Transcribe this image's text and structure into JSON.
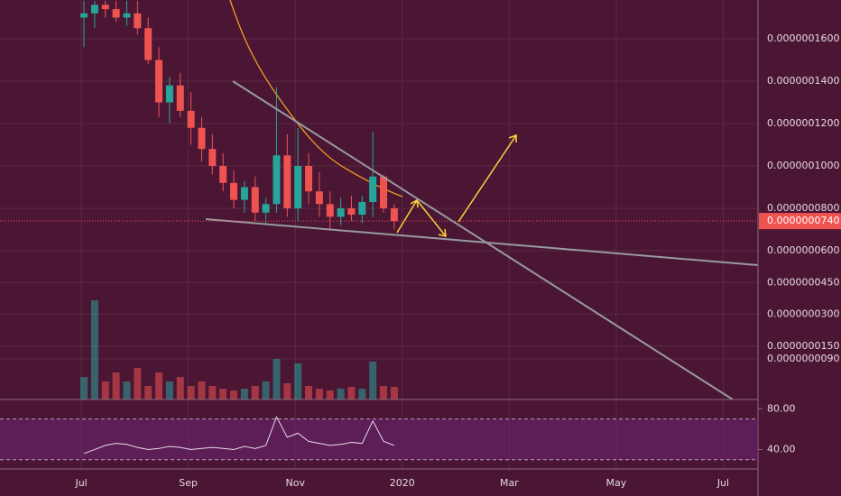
{
  "chart_data": {
    "type": "candlestick",
    "background": "#4a1633",
    "grid_color": "#5c2a45",
    "up_color": "#26a69a",
    "down_color": "#ef5350",
    "xlim": [
      -1.52,
      12.65
    ],
    "xticks": [
      {
        "value": 0,
        "label": "Jul"
      },
      {
        "value": 2,
        "label": "Sep"
      },
      {
        "value": 4,
        "label": "Nov"
      },
      {
        "value": 6,
        "label": "2020"
      },
      {
        "value": 8,
        "label": "Mar"
      },
      {
        "value": 10,
        "label": "May"
      },
      {
        "value": 12,
        "label": "Jul"
      }
    ],
    "ylim": [
      -1.02e-08,
      1.783e-07
    ],
    "yticks": [
      {
        "value": 1.6e-07,
        "label": "0.0000001600"
      },
      {
        "value": 1.4e-07,
        "label": "0.0000001400"
      },
      {
        "value": 1.2e-07,
        "label": "0.0000001200"
      },
      {
        "value": 1e-07,
        "label": "0.0000001000"
      },
      {
        "value": 8e-08,
        "label": "0.0000000800"
      },
      {
        "value": 6e-08,
        "label": "0.0000000600"
      },
      {
        "value": 4.5e-08,
        "label": "0.0000000450"
      },
      {
        "value": 3e-08,
        "label": "0.0000000300"
      },
      {
        "value": 1.5e-08,
        "label": "0.0000000150"
      },
      {
        "value": 9e-09,
        "label": "0.0000000090"
      }
    ],
    "last_price": {
      "value": 7.4e-08,
      "label": "0.0000000740"
    },
    "candles": {
      "x": [
        0.05,
        0.25,
        0.45,
        0.65,
        0.85,
        1.05,
        1.25,
        1.45,
        1.65,
        1.85,
        2.05,
        2.25,
        2.45,
        2.65,
        2.85,
        3.05,
        3.25,
        3.45,
        3.65,
        3.85,
        4.05,
        4.25,
        4.45,
        4.65,
        4.85,
        5.05,
        5.25,
        5.45,
        5.65,
        5.85
      ],
      "open": [
        1.7e-07,
        1.72e-07,
        1.76e-07,
        1.74e-07,
        1.7e-07,
        1.72e-07,
        1.65e-07,
        1.5e-07,
        1.3e-07,
        1.38e-07,
        1.26e-07,
        1.18e-07,
        1.08e-07,
        1e-07,
        9.2e-08,
        8.4e-08,
        9e-08,
        7.8e-08,
        8.2e-08,
        1.05e-07,
        8e-08,
        1e-07,
        8.8e-08,
        8.2e-08,
        7.6e-08,
        8e-08,
        7.7e-08,
        8.3e-08,
        9.5e-08,
        8e-08
      ],
      "high": [
        1.78e-07,
        1.78e-07,
        1.78e-07,
        1.78e-07,
        1.78e-07,
        1.78e-07,
        1.7e-07,
        1.56e-07,
        1.42e-07,
        1.44e-07,
        1.35e-07,
        1.23e-07,
        1.15e-07,
        1.06e-07,
        9.8e-08,
        9.3e-08,
        9.5e-08,
        8.5e-08,
        1.37e-07,
        1.15e-07,
        1.18e-07,
        1.06e-07,
        9.7e-08,
        8.8e-08,
        8.5e-08,
        8.6e-08,
        8.6e-08,
        1.16e-07,
        9.6e-08,
        8.2e-08
      ],
      "low": [
        1.56e-07,
        1.65e-07,
        1.7e-07,
        1.68e-07,
        1.66e-07,
        1.62e-07,
        1.48e-07,
        1.23e-07,
        1.2e-07,
        1.23e-07,
        1.1e-07,
        1.02e-07,
        9.6e-08,
        8.8e-08,
        8e-08,
        7.8e-08,
        7.4e-08,
        7.2e-08,
        7.8e-08,
        7.6e-08,
        7.4e-08,
        8.2e-08,
        7.6e-08,
        7e-08,
        7.2e-08,
        7.4e-08,
        7.3e-08,
        7.6e-08,
        7.8e-08,
        7e-08
      ],
      "close": [
        1.72e-07,
        1.76e-07,
        1.74e-07,
        1.7e-07,
        1.72e-07,
        1.65e-07,
        1.5e-07,
        1.3e-07,
        1.38e-07,
        1.26e-07,
        1.18e-07,
        1.08e-07,
        1e-07,
        9.2e-08,
        8.4e-08,
        9e-08,
        7.8e-08,
        8.2e-08,
        1.05e-07,
        8e-08,
        1e-07,
        8.8e-08,
        8.2e-08,
        7.6e-08,
        8e-08,
        7.7e-08,
        8.3e-08,
        9.5e-08,
        8e-08,
        7.4e-08
      ],
      "volume": [
        25,
        110,
        20,
        30,
        20,
        35,
        15,
        30,
        20,
        25,
        15,
        20,
        15,
        12,
        10,
        12,
        15,
        20,
        45,
        18,
        40,
        15,
        12,
        10,
        12,
        14,
        12,
        42,
        15,
        14
      ]
    },
    "rsi": {
      "color": "#e8dce8",
      "values": [
        36,
        40,
        44,
        46,
        45,
        42,
        40,
        41,
        43,
        42,
        40,
        41,
        42,
        41,
        40,
        43,
        41,
        44,
        72,
        52,
        56,
        48,
        46,
        44,
        45,
        47,
        46,
        68,
        48,
        44
      ],
      "ylim": [
        20.9,
        89.1
      ],
      "yticks": [
        {
          "value": 80,
          "label": "80.00"
        },
        {
          "value": 40,
          "label": "40.00"
        }
      ],
      "levels": [
        70,
        30
      ]
    }
  }
}
